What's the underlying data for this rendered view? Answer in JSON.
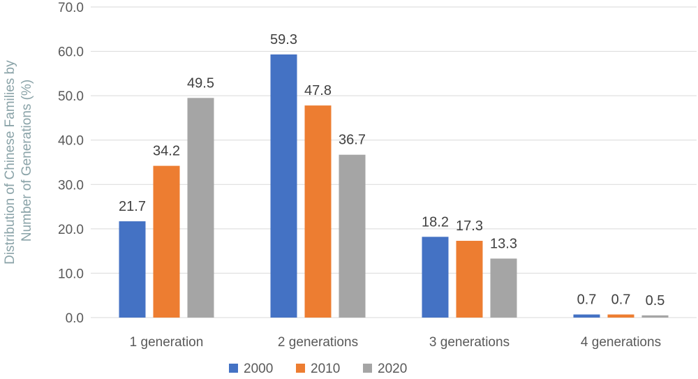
{
  "chart_data": {
    "type": "bar",
    "categories": [
      "1 generation",
      "2 generations",
      "3 generations",
      "4 generations"
    ],
    "series": [
      {
        "name": "2000",
        "color": "#4472c4",
        "values": [
          21.7,
          59.3,
          18.2,
          0.7
        ]
      },
      {
        "name": "2010",
        "color": "#ed7d31",
        "values": [
          34.2,
          47.8,
          17.3,
          0.7
        ]
      },
      {
        "name": "2020",
        "color": "#a5a5a5",
        "values": [
          49.5,
          36.7,
          13.3,
          0.5
        ]
      }
    ],
    "data_labels": [
      [
        "21.7",
        "59.3",
        "18.2",
        "0.7"
      ],
      [
        "34.2",
        "47.8",
        "17.3",
        "0.7"
      ],
      [
        "49.5",
        "36.7",
        "13.3",
        "0.5"
      ]
    ],
    "title": "",
    "xlabel": "",
    "ylabel_lines": [
      "Distribution of Chinese Families by",
      "Number of Generations (%)"
    ],
    "ylim": [
      0,
      70
    ],
    "yticks": [
      "0.0",
      "10.0",
      "20.0",
      "30.0",
      "40.0",
      "50.0",
      "60.0",
      "70.0"
    ],
    "grid": true,
    "legend_position": "bottom"
  }
}
